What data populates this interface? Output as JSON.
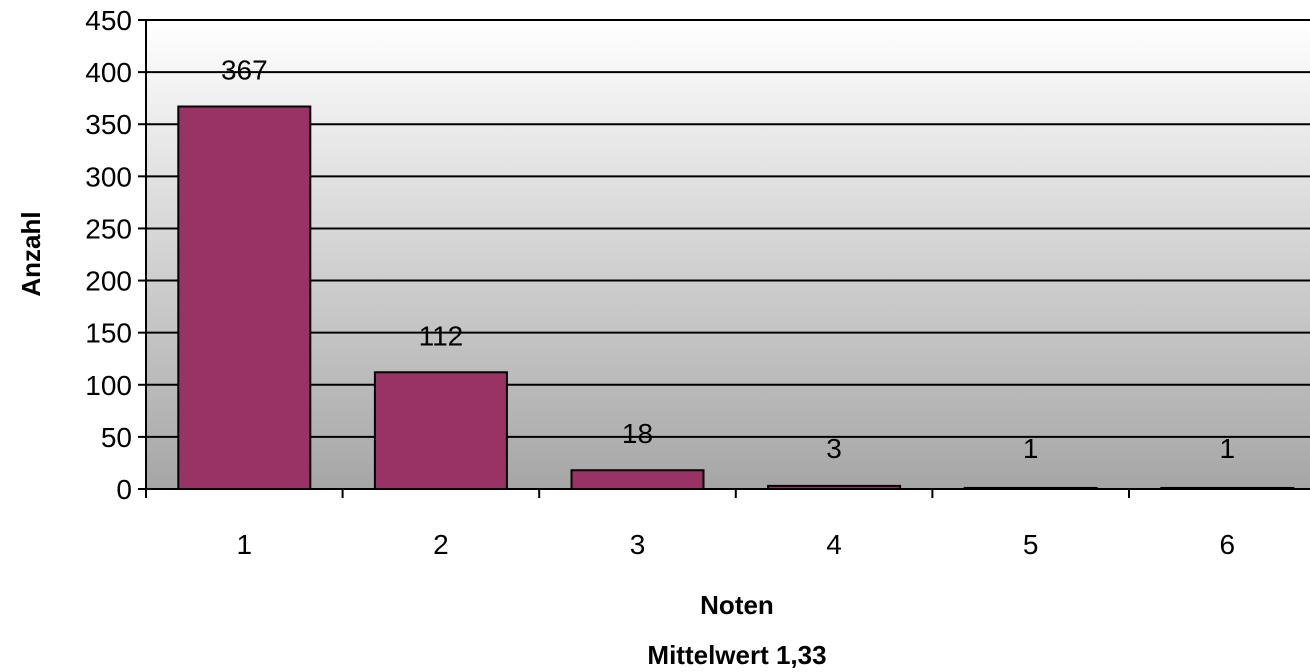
{
  "chart_data": {
    "type": "bar",
    "categories": [
      "1",
      "2",
      "3",
      "4",
      "5",
      "6"
    ],
    "values": [
      367,
      112,
      18,
      3,
      1,
      1
    ],
    "data_labels": [
      "367",
      "112",
      "18",
      "3",
      "1",
      "1"
    ],
    "title": "",
    "xlabel": "Noten",
    "xlabel_sub": "Mittelwert 1,33",
    "ylabel": "Anzahl",
    "ylim": [
      0,
      450
    ],
    "yticks": [
      0,
      50,
      100,
      150,
      200,
      250,
      300,
      350,
      400,
      450
    ],
    "grid": true,
    "legend": "none",
    "colors": {
      "bar_fill": "#993366",
      "bar_stroke": "#000000",
      "plot_bg_top": "#ffffff",
      "plot_bg_bottom": "#a6a6a6",
      "grid": "#000000"
    }
  }
}
